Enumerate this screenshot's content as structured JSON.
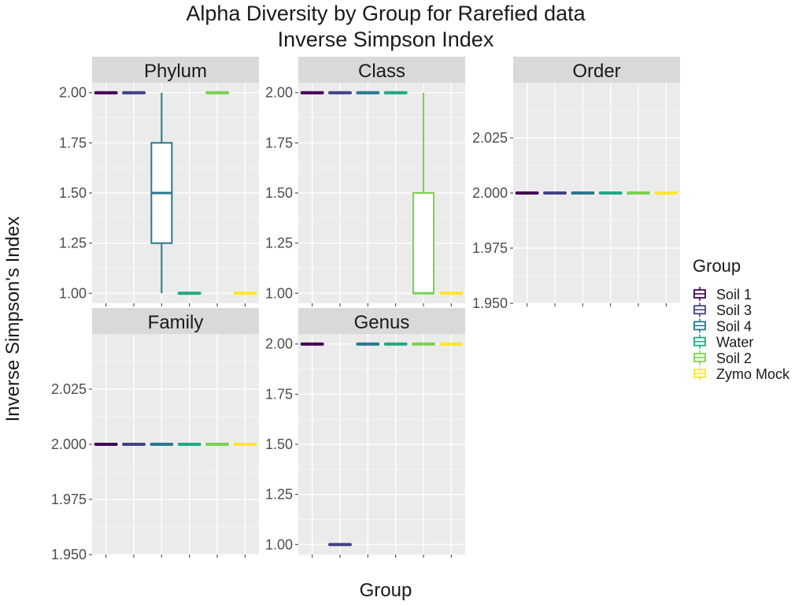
{
  "chart_data": {
    "type": "box",
    "title": "Alpha Diversity by Group for Rarefied data",
    "subtitle": "Inverse Simpson Index",
    "xlabel": "Group",
    "ylabel": "Inverse Simpson's Index",
    "legend": {
      "title": "Group",
      "position": "right",
      "items": [
        {
          "label": "Soil 1",
          "color": "#440154"
        },
        {
          "label": "Soil 3",
          "color": "#414487"
        },
        {
          "label": "Soil 4",
          "color": "#2A788E"
        },
        {
          "label": "Water",
          "color": "#22A884"
        },
        {
          "label": "Soil 2",
          "color": "#7AD151"
        },
        {
          "label": "Zymo Mock",
          "color": "#FDE725"
        }
      ]
    },
    "grid": true,
    "x_tick_labels_shown": false,
    "panels": [
      {
        "name": "Phylum",
        "ylim": [
          0.95,
          2.05
        ],
        "ticks": [
          1.0,
          1.25,
          1.5,
          1.75,
          2.0
        ],
        "tick_labels": [
          "1.00",
          "1.25",
          "1.50",
          "1.75",
          "2.00"
        ],
        "boxes": [
          {
            "group": "Soil 1",
            "min": 2.0,
            "q1": 2.0,
            "median": 2.0,
            "q3": 2.0,
            "max": 2.0
          },
          {
            "group": "Soil 3",
            "min": 2.0,
            "q1": 2.0,
            "median": 2.0,
            "q3": 2.0,
            "max": 2.0
          },
          {
            "group": "Soil 4",
            "min": 1.0,
            "q1": 1.25,
            "median": 1.5,
            "q3": 1.75,
            "max": 2.0
          },
          {
            "group": "Water",
            "min": 1.0,
            "q1": 1.0,
            "median": 1.0,
            "q3": 1.0,
            "max": 1.0
          },
          {
            "group": "Soil 2",
            "min": 2.0,
            "q1": 2.0,
            "median": 2.0,
            "q3": 2.0,
            "max": 2.0
          },
          {
            "group": "Zymo Mock",
            "min": 1.0,
            "q1": 1.0,
            "median": 1.0,
            "q3": 1.0,
            "max": 1.0
          }
        ]
      },
      {
        "name": "Class",
        "ylim": [
          0.95,
          2.05
        ],
        "ticks": [
          1.0,
          1.25,
          1.5,
          1.75,
          2.0
        ],
        "tick_labels": [
          "1.00",
          "1.25",
          "1.50",
          "1.75",
          "2.00"
        ],
        "boxes": [
          {
            "group": "Soil 1",
            "min": 2.0,
            "q1": 2.0,
            "median": 2.0,
            "q3": 2.0,
            "max": 2.0
          },
          {
            "group": "Soil 3",
            "min": 2.0,
            "q1": 2.0,
            "median": 2.0,
            "q3": 2.0,
            "max": 2.0
          },
          {
            "group": "Soil 4",
            "min": 2.0,
            "q1": 2.0,
            "median": 2.0,
            "q3": 2.0,
            "max": 2.0
          },
          {
            "group": "Water",
            "min": 2.0,
            "q1": 2.0,
            "median": 2.0,
            "q3": 2.0,
            "max": 2.0
          },
          {
            "group": "Soil 2",
            "min": 1.0,
            "q1": 1.0,
            "median": 1.0,
            "q3": 1.5,
            "max": 2.0
          },
          {
            "group": "Zymo Mock",
            "min": 1.0,
            "q1": 1.0,
            "median": 1.0,
            "q3": 1.0,
            "max": 1.0
          }
        ]
      },
      {
        "name": "Order",
        "ylim": [
          1.95,
          2.05
        ],
        "ticks": [
          1.95,
          1.975,
          2.0,
          2.025
        ],
        "tick_labels": [
          "1.950",
          "1.975",
          "2.000",
          "2.025"
        ],
        "boxes": [
          {
            "group": "Soil 1",
            "min": 2.0,
            "q1": 2.0,
            "median": 2.0,
            "q3": 2.0,
            "max": 2.0
          },
          {
            "group": "Soil 3",
            "min": 2.0,
            "q1": 2.0,
            "median": 2.0,
            "q3": 2.0,
            "max": 2.0
          },
          {
            "group": "Soil 4",
            "min": 2.0,
            "q1": 2.0,
            "median": 2.0,
            "q3": 2.0,
            "max": 2.0
          },
          {
            "group": "Water",
            "min": 2.0,
            "q1": 2.0,
            "median": 2.0,
            "q3": 2.0,
            "max": 2.0
          },
          {
            "group": "Soil 2",
            "min": 2.0,
            "q1": 2.0,
            "median": 2.0,
            "q3": 2.0,
            "max": 2.0
          },
          {
            "group": "Zymo Mock",
            "min": 2.0,
            "q1": 2.0,
            "median": 2.0,
            "q3": 2.0,
            "max": 2.0
          }
        ]
      },
      {
        "name": "Family",
        "ylim": [
          1.95,
          2.05
        ],
        "ticks": [
          1.95,
          1.975,
          2.0,
          2.025
        ],
        "tick_labels": [
          "1.950",
          "1.975",
          "2.000",
          "2.025"
        ],
        "boxes": [
          {
            "group": "Soil 1",
            "min": 2.0,
            "q1": 2.0,
            "median": 2.0,
            "q3": 2.0,
            "max": 2.0
          },
          {
            "group": "Soil 3",
            "min": 2.0,
            "q1": 2.0,
            "median": 2.0,
            "q3": 2.0,
            "max": 2.0
          },
          {
            "group": "Soil 4",
            "min": 2.0,
            "q1": 2.0,
            "median": 2.0,
            "q3": 2.0,
            "max": 2.0
          },
          {
            "group": "Water",
            "min": 2.0,
            "q1": 2.0,
            "median": 2.0,
            "q3": 2.0,
            "max": 2.0
          },
          {
            "group": "Soil 2",
            "min": 2.0,
            "q1": 2.0,
            "median": 2.0,
            "q3": 2.0,
            "max": 2.0
          },
          {
            "group": "Zymo Mock",
            "min": 2.0,
            "q1": 2.0,
            "median": 2.0,
            "q3": 2.0,
            "max": 2.0
          }
        ]
      },
      {
        "name": "Genus",
        "ylim": [
          0.95,
          2.05
        ],
        "ticks": [
          1.0,
          1.25,
          1.5,
          1.75,
          2.0
        ],
        "tick_labels": [
          "1.00",
          "1.25",
          "1.50",
          "1.75",
          "2.00"
        ],
        "boxes": [
          {
            "group": "Soil 1",
            "min": 2.0,
            "q1": 2.0,
            "median": 2.0,
            "q3": 2.0,
            "max": 2.0
          },
          {
            "group": "Soil 3",
            "min": 1.0,
            "q1": 1.0,
            "median": 1.0,
            "q3": 1.0,
            "max": 1.0
          },
          {
            "group": "Soil 4",
            "min": 2.0,
            "q1": 2.0,
            "median": 2.0,
            "q3": 2.0,
            "max": 2.0
          },
          {
            "group": "Water",
            "min": 2.0,
            "q1": 2.0,
            "median": 2.0,
            "q3": 2.0,
            "max": 2.0
          },
          {
            "group": "Soil 2",
            "min": 2.0,
            "q1": 2.0,
            "median": 2.0,
            "q3": 2.0,
            "max": 2.0
          },
          {
            "group": "Zymo Mock",
            "min": 2.0,
            "q1": 2.0,
            "median": 2.0,
            "q3": 2.0,
            "max": 2.0
          }
        ]
      }
    ]
  }
}
